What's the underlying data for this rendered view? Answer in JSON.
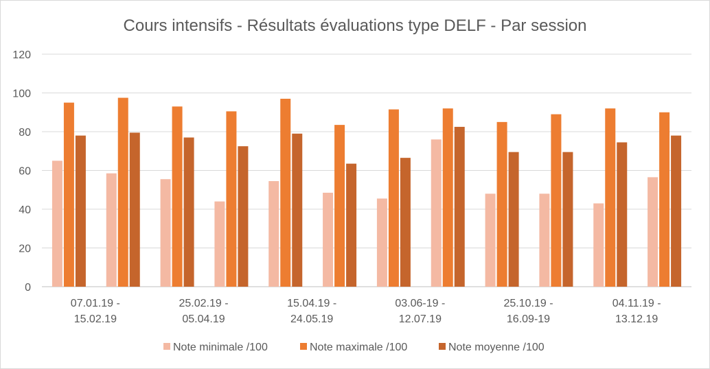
{
  "chart_data": {
    "type": "bar",
    "title": "Cours intensifs - Résultats évaluations type DELF - Par session",
    "xlabel": "",
    "ylabel": "",
    "ylim": [
      0,
      120
    ],
    "yticks": [
      0,
      20,
      40,
      60,
      80,
      100,
      120
    ],
    "grid": true,
    "legend_position": "bottom",
    "category_count": 12,
    "category_labels": [
      {
        "index": 0,
        "lines": [
          "07.01.19 -",
          "15.02.19"
        ]
      },
      {
        "index": 2,
        "lines": [
          "25.02.19 -",
          "05.04.19"
        ]
      },
      {
        "index": 4,
        "lines": [
          "15.04.19 -",
          "24.05.19"
        ]
      },
      {
        "index": 6,
        "lines": [
          "03.06-19 -",
          "12.07.19"
        ]
      },
      {
        "index": 8,
        "lines": [
          "25.10.19 -",
          "16.09-19"
        ]
      },
      {
        "index": 10,
        "lines": [
          "04.11.19 -",
          "13.12.19"
        ]
      }
    ],
    "series": [
      {
        "name": "Note minimale /100",
        "color": "#f4b9a3",
        "values": [
          65,
          58.5,
          55.5,
          44,
          54.5,
          48.5,
          45.5,
          76,
          48,
          48,
          43,
          56.5
        ]
      },
      {
        "name": "Note maximale /100",
        "color": "#ed7d31",
        "values": [
          95,
          97.5,
          93,
          90.5,
          97,
          83.5,
          91.5,
          92,
          85,
          89,
          92,
          90
        ]
      },
      {
        "name": "Note moyenne /100",
        "color": "#c5652c",
        "values": [
          78,
          79.5,
          77,
          72.5,
          79,
          63.5,
          66.5,
          82.5,
          69.5,
          69.5,
          74.5,
          78
        ]
      }
    ]
  }
}
